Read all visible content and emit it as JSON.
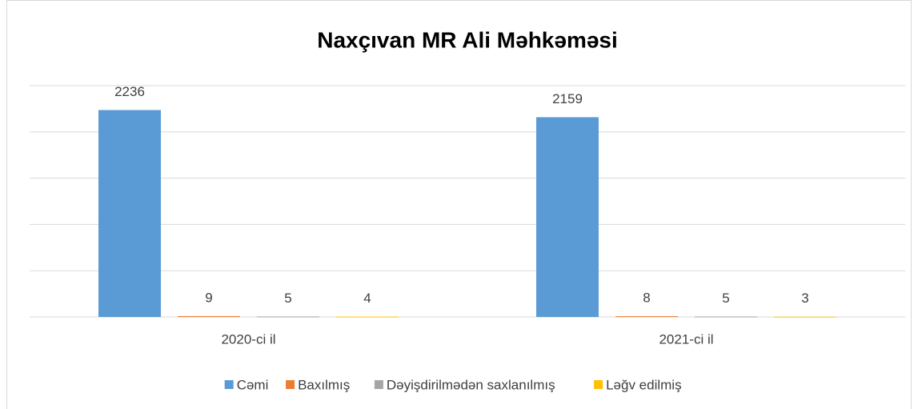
{
  "chart_data": {
    "type": "bar",
    "title": "Naxçıvan MR Ali Məhkəməsi",
    "categories": [
      "2020-ci il",
      "2021-ci il"
    ],
    "series": [
      {
        "name": "Cəmi",
        "color": "#5b9bd5",
        "values": [
          2236,
          2159
        ]
      },
      {
        "name": "Baxılmış",
        "color": "#ed7d31",
        "values": [
          9,
          8
        ]
      },
      {
        "name": "Dəyişdirilmədən saxlanılmış",
        "color": "#a5a5a5",
        "values": [
          5,
          5
        ]
      },
      {
        "name": "Ləğv edilmiş",
        "color": "#ffc000",
        "values": [
          4,
          3
        ]
      }
    ],
    "ylim": [
      0,
      2500
    ],
    "yticks": [
      0,
      500,
      1000,
      1500,
      2000,
      2500
    ],
    "grid": true,
    "legend": "bottom"
  }
}
